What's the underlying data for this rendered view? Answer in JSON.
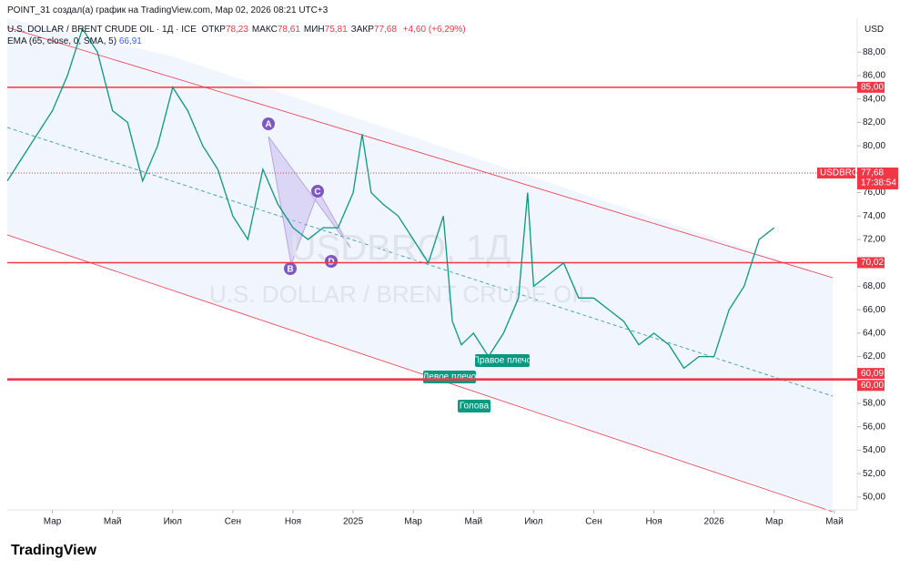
{
  "header": {
    "credit": "POINT_31 создал(а) график на TradingView.com, Мар 02, 2026 08:21 UTC+3",
    "symbol": "U.S. DOLLAR / BRENT CRUDE OIL · 1Д · ICE",
    "ohlc": [
      {
        "label": "ОТКР",
        "value": "78,23"
      },
      {
        "label": "МАКС",
        "value": "78,61"
      },
      {
        "label": "МИН",
        "value": "75,81"
      },
      {
        "label": "ЗАКР",
        "value": "77,68"
      }
    ],
    "change": "+4,60 (+6,29%)",
    "indicator": "EMA (65, close, 0, SMA, 5)",
    "indicator_value": "66,91",
    "currency": "USD"
  },
  "chart": {
    "ylim": [
      48.9,
      90.9
    ],
    "xlim": [
      0.5,
      28.7
    ],
    "yticks": [
      {
        "value": 88,
        "label": "88,00"
      },
      {
        "value": 86,
        "label": "86,00"
      },
      {
        "value": 84,
        "label": "84,00"
      },
      {
        "value": 82,
        "label": "82,00"
      },
      {
        "value": 80,
        "label": "80,00"
      },
      {
        "value": 76,
        "label": "76,00"
      },
      {
        "value": 74,
        "label": "74,00"
      },
      {
        "value": 72,
        "label": "72,00"
      },
      {
        "value": 68,
        "label": "68,00"
      },
      {
        "value": 66,
        "label": "66,00"
      },
      {
        "value": 64,
        "label": "64,00"
      },
      {
        "value": 62,
        "label": "62,00"
      },
      {
        "value": 58,
        "label": "58,00"
      },
      {
        "value": 56,
        "label": "56,00"
      },
      {
        "value": 54,
        "label": "54,00"
      },
      {
        "value": 52,
        "label": "52,00"
      },
      {
        "value": 50,
        "label": "50,00"
      }
    ],
    "xticks": [
      {
        "value": 2,
        "label": "Мар"
      },
      {
        "value": 4,
        "label": "Май"
      },
      {
        "value": 6,
        "label": "Июл"
      },
      {
        "value": 8,
        "label": "Сен"
      },
      {
        "value": 10,
        "label": "Ноя"
      },
      {
        "value": 12,
        "label": "2025"
      },
      {
        "value": 14,
        "label": "Мар"
      },
      {
        "value": 16,
        "label": "Май"
      },
      {
        "value": 18,
        "label": "Июл"
      },
      {
        "value": 20,
        "label": "Сен"
      },
      {
        "value": 22,
        "label": "Ноя"
      },
      {
        "value": 24,
        "label": "2026"
      },
      {
        "value": 26,
        "label": "Мар"
      },
      {
        "value": 28,
        "label": "Май"
      }
    ],
    "price": {
      "x": [
        0.5,
        1,
        1.5,
        2,
        2.5,
        3,
        3.5,
        4,
        4.5,
        5,
        5.5,
        6,
        6.5,
        7,
        7.5,
        8,
        8.5,
        9,
        9.5,
        10,
        10.5,
        11,
        11.5,
        12,
        12.3,
        12.6,
        13,
        13.5,
        14,
        14.5,
        15,
        15.3,
        15.6,
        16,
        16.5,
        17,
        17.5,
        17.8,
        18,
        18.5,
        19,
        19.5,
        20,
        20.5,
        21,
        21.5,
        22,
        22.5,
        23,
        23.5,
        24,
        24.5,
        25,
        25.5,
        26
      ],
      "values": [
        77,
        79,
        81,
        83,
        86,
        90,
        88,
        83,
        82,
        77,
        80,
        85,
        83,
        80,
        78,
        74,
        72,
        78,
        75,
        73,
        72,
        73,
        73,
        76,
        81,
        76,
        75,
        74,
        72,
        70,
        74,
        65,
        63,
        64,
        62,
        64,
        67,
        76,
        68,
        69,
        70,
        67,
        67,
        66,
        65,
        63,
        64,
        63,
        61,
        62,
        62,
        66,
        68,
        72,
        73
      ]
    },
    "levels": [
      {
        "value": 85,
        "label": "85,00"
      },
      {
        "value": 70.02,
        "label": "70,02"
      },
      {
        "value": 60.09,
        "label": "60,09"
      },
      {
        "value": 60,
        "label": "60,00"
      }
    ],
    "last": {
      "name": "USDBRO",
      "value": 77.68,
      "label": "77,68",
      "countdown": "17:38:54"
    },
    "watermark": [
      "USDBRO, 1Д",
      "U.S. DOLLAR / BRENT CRUDE OIL"
    ],
    "annotations": {
      "points": [
        "A",
        "B",
        "C",
        "D"
      ],
      "left_shoulder": "Левое плечо",
      "right_shoulder": "Правое плечо",
      "head": "Голова"
    }
  },
  "footer": {
    "brand": "TradingView"
  }
}
